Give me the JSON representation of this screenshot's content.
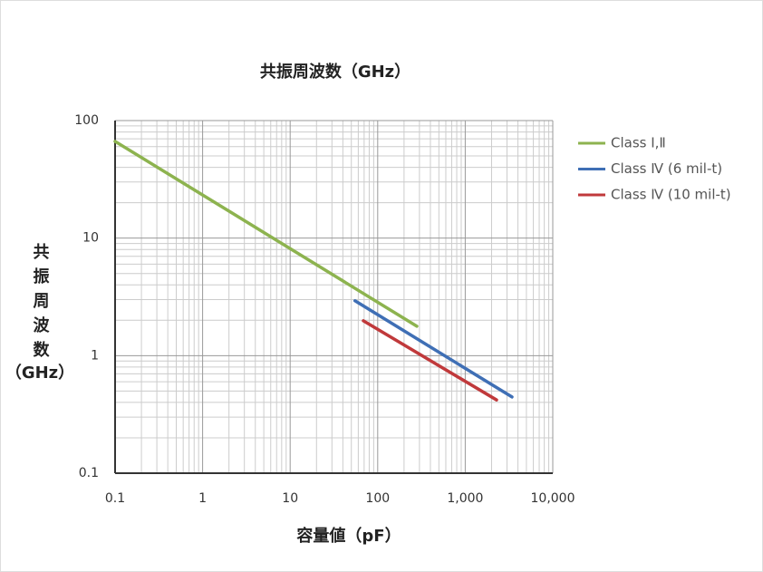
{
  "chart_data": {
    "type": "line",
    "title": "共振周波数（GHz）",
    "xlabel": "容量値（pF）",
    "ylabel": "共振周波数",
    "ylabel_unit": "（GHz）",
    "xlog": true,
    "ylog": true,
    "grid": true,
    "minor_grid": true,
    "legend": "right",
    "xlim": [
      0.1,
      10000
    ],
    "ylim": [
      0.1,
      100
    ],
    "xticks": [
      0.1,
      1,
      10,
      100,
      {
        "value": 1000,
        "label": "1,000"
      },
      {
        "value": 10000,
        "label": "10,000"
      }
    ],
    "yticks": [
      0.1,
      1,
      10,
      100
    ],
    "series": [
      {
        "name": "Class Ⅰ,Ⅱ",
        "color": "#8db34f",
        "x": [
          0.1,
          280
        ],
        "values": [
          66.5,
          1.78
        ]
      },
      {
        "name": "Class Ⅳ (6 mil-t)",
        "color": "#3f6fb5",
        "x": [
          55,
          3420
        ],
        "values": [
          2.93,
          0.445
        ]
      },
      {
        "name": "Class Ⅳ (10 mil-t)",
        "color": "#c0393b",
        "x": [
          68.6,
          2280
        ],
        "values": [
          1.98,
          0.42
        ]
      }
    ]
  }
}
